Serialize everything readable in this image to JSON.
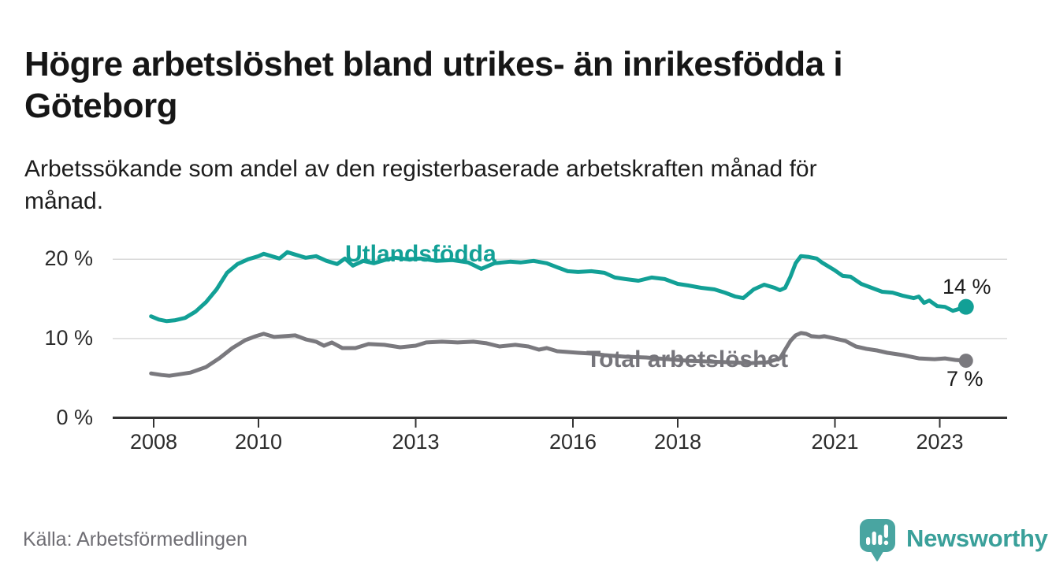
{
  "header": {
    "title": "Högre arbetslöshet bland utrikes- än inrikesfödda i\nGöteborg",
    "subtitle": "Arbetssökande som andel av den registerbaserade arbetskraften månad för\nmånad."
  },
  "footer": {
    "source": "Källa: Arbetsförmedlingen",
    "brand": "Newsworthy"
  },
  "colors": {
    "foreign_born_line": "#12A096",
    "total_line": "#7A797E",
    "axis": "#333333",
    "gridline": "#DADADA",
    "logo_teal": "#49A5A1",
    "brand_text": "#3AA09A"
  },
  "chart_data": {
    "type": "line",
    "title": "Högre arbetslöshet bland utrikes- än inrikesfödda i Göteborg",
    "subtitle": "Arbetssökande som andel av den registerbaserade arbetskraften månad för månad.",
    "xlabel": "",
    "ylabel": "",
    "grid": "horizontal-only",
    "x_ticks": [
      2008,
      2010,
      2013,
      2016,
      2018,
      2021,
      2023
    ],
    "y_ticks": [
      {
        "value": 0,
        "label": "0 %"
      },
      {
        "value": 10,
        "label": "10 %"
      },
      {
        "value": 20,
        "label": "20 %"
      }
    ],
    "x_range": [
      2007.9,
      2023.75
    ],
    "y_range": [
      0,
      22
    ],
    "legend_position": "inline-labels-on-lines",
    "series": [
      {
        "name": "Utlandsfödda",
        "color": "#12A096",
        "line_width": 5,
        "end_dot_radius": 10,
        "end_label": "14 %",
        "end_value": 14,
        "points": [
          [
            2007.95,
            12.8
          ],
          [
            2008.1,
            12.4
          ],
          [
            2008.25,
            12.2
          ],
          [
            2008.4,
            12.3
          ],
          [
            2008.6,
            12.6
          ],
          [
            2008.8,
            13.4
          ],
          [
            2009.0,
            14.6
          ],
          [
            2009.2,
            16.2
          ],
          [
            2009.4,
            18.3
          ],
          [
            2009.6,
            19.4
          ],
          [
            2009.8,
            20.0
          ],
          [
            2010.0,
            20.4
          ],
          [
            2010.1,
            20.7
          ],
          [
            2010.25,
            20.4
          ],
          [
            2010.4,
            20.1
          ],
          [
            2010.55,
            20.9
          ],
          [
            2010.7,
            20.6
          ],
          [
            2010.9,
            20.2
          ],
          [
            2011.1,
            20.4
          ],
          [
            2011.3,
            19.8
          ],
          [
            2011.5,
            19.4
          ],
          [
            2011.65,
            20.1
          ],
          [
            2011.8,
            19.2
          ],
          [
            2012.0,
            19.8
          ],
          [
            2012.2,
            19.5
          ],
          [
            2012.4,
            19.9
          ],
          [
            2012.6,
            20.2
          ],
          [
            2012.85,
            20.0
          ],
          [
            2013.1,
            20.1
          ],
          [
            2013.4,
            19.8
          ],
          [
            2013.7,
            19.9
          ],
          [
            2014.0,
            19.6
          ],
          [
            2014.25,
            18.8
          ],
          [
            2014.5,
            19.5
          ],
          [
            2014.8,
            19.7
          ],
          [
            2015.0,
            19.6
          ],
          [
            2015.25,
            19.8
          ],
          [
            2015.5,
            19.5
          ],
          [
            2015.7,
            19.0
          ],
          [
            2015.9,
            18.5
          ],
          [
            2016.1,
            18.4
          ],
          [
            2016.35,
            18.5
          ],
          [
            2016.6,
            18.3
          ],
          [
            2016.8,
            17.7
          ],
          [
            2017.0,
            17.5
          ],
          [
            2017.25,
            17.3
          ],
          [
            2017.5,
            17.7
          ],
          [
            2017.75,
            17.5
          ],
          [
            2018.0,
            16.9
          ],
          [
            2018.2,
            16.7
          ],
          [
            2018.45,
            16.4
          ],
          [
            2018.7,
            16.2
          ],
          [
            2018.9,
            15.8
          ],
          [
            2019.1,
            15.3
          ],
          [
            2019.25,
            15.1
          ],
          [
            2019.45,
            16.2
          ],
          [
            2019.65,
            16.8
          ],
          [
            2019.85,
            16.4
          ],
          [
            2019.95,
            16.1
          ],
          [
            2020.05,
            16.4
          ],
          [
            2020.15,
            17.8
          ],
          [
            2020.25,
            19.5
          ],
          [
            2020.35,
            20.4
          ],
          [
            2020.5,
            20.3
          ],
          [
            2020.65,
            20.1
          ],
          [
            2020.75,
            19.6
          ],
          [
            2020.85,
            19.2
          ],
          [
            2021.0,
            18.6
          ],
          [
            2021.15,
            17.9
          ],
          [
            2021.3,
            17.8
          ],
          [
            2021.5,
            16.9
          ],
          [
            2021.7,
            16.4
          ],
          [
            2021.9,
            15.9
          ],
          [
            2022.1,
            15.8
          ],
          [
            2022.3,
            15.4
          ],
          [
            2022.5,
            15.1
          ],
          [
            2022.6,
            15.3
          ],
          [
            2022.7,
            14.5
          ],
          [
            2022.8,
            14.8
          ],
          [
            2022.95,
            14.1
          ],
          [
            2023.1,
            14.0
          ],
          [
            2023.25,
            13.5
          ],
          [
            2023.4,
            13.8
          ],
          [
            2023.5,
            14.0
          ]
        ]
      },
      {
        "name": "Total arbetslöshet",
        "color": "#7A797E",
        "line_width": 5,
        "end_dot_radius": 9,
        "end_label": "7 %",
        "end_value": 7,
        "points": [
          [
            2007.95,
            5.6
          ],
          [
            2008.15,
            5.4
          ],
          [
            2008.3,
            5.3
          ],
          [
            2008.5,
            5.5
          ],
          [
            2008.7,
            5.7
          ],
          [
            2009.0,
            6.4
          ],
          [
            2009.25,
            7.5
          ],
          [
            2009.5,
            8.8
          ],
          [
            2009.75,
            9.8
          ],
          [
            2009.95,
            10.3
          ],
          [
            2010.1,
            10.6
          ],
          [
            2010.3,
            10.2
          ],
          [
            2010.5,
            10.3
          ],
          [
            2010.7,
            10.4
          ],
          [
            2010.9,
            9.9
          ],
          [
            2011.1,
            9.6
          ],
          [
            2011.25,
            9.1
          ],
          [
            2011.4,
            9.5
          ],
          [
            2011.6,
            8.8
          ],
          [
            2011.85,
            8.8
          ],
          [
            2012.1,
            9.3
          ],
          [
            2012.4,
            9.2
          ],
          [
            2012.7,
            8.9
          ],
          [
            2013.0,
            9.1
          ],
          [
            2013.2,
            9.5
          ],
          [
            2013.5,
            9.6
          ],
          [
            2013.8,
            9.5
          ],
          [
            2014.1,
            9.6
          ],
          [
            2014.35,
            9.4
          ],
          [
            2014.6,
            9.0
          ],
          [
            2014.9,
            9.2
          ],
          [
            2015.15,
            9.0
          ],
          [
            2015.35,
            8.6
          ],
          [
            2015.5,
            8.8
          ],
          [
            2015.7,
            8.4
          ],
          [
            2015.9,
            8.3
          ],
          [
            2016.1,
            8.2
          ],
          [
            2016.35,
            8.1
          ],
          [
            2016.6,
            7.9
          ],
          [
            2017.0,
            7.7
          ],
          [
            2017.4,
            7.6
          ],
          [
            2017.8,
            7.4
          ],
          [
            2018.2,
            7.2
          ],
          [
            2018.6,
            7.1
          ],
          [
            2019.0,
            7.0
          ],
          [
            2019.4,
            6.9
          ],
          [
            2019.7,
            7.0
          ],
          [
            2019.95,
            7.5
          ],
          [
            2020.05,
            8.6
          ],
          [
            2020.15,
            9.7
          ],
          [
            2020.25,
            10.4
          ],
          [
            2020.35,
            10.7
          ],
          [
            2020.45,
            10.6
          ],
          [
            2020.55,
            10.3
          ],
          [
            2020.7,
            10.2
          ],
          [
            2020.8,
            10.3
          ],
          [
            2021.0,
            10.0
          ],
          [
            2021.2,
            9.7
          ],
          [
            2021.4,
            9.0
          ],
          [
            2021.6,
            8.7
          ],
          [
            2021.8,
            8.5
          ],
          [
            2022.0,
            8.2
          ],
          [
            2022.3,
            7.9
          ],
          [
            2022.6,
            7.5
          ],
          [
            2022.9,
            7.4
          ],
          [
            2023.1,
            7.5
          ],
          [
            2023.3,
            7.3
          ],
          [
            2023.5,
            7.2
          ]
        ]
      }
    ]
  }
}
